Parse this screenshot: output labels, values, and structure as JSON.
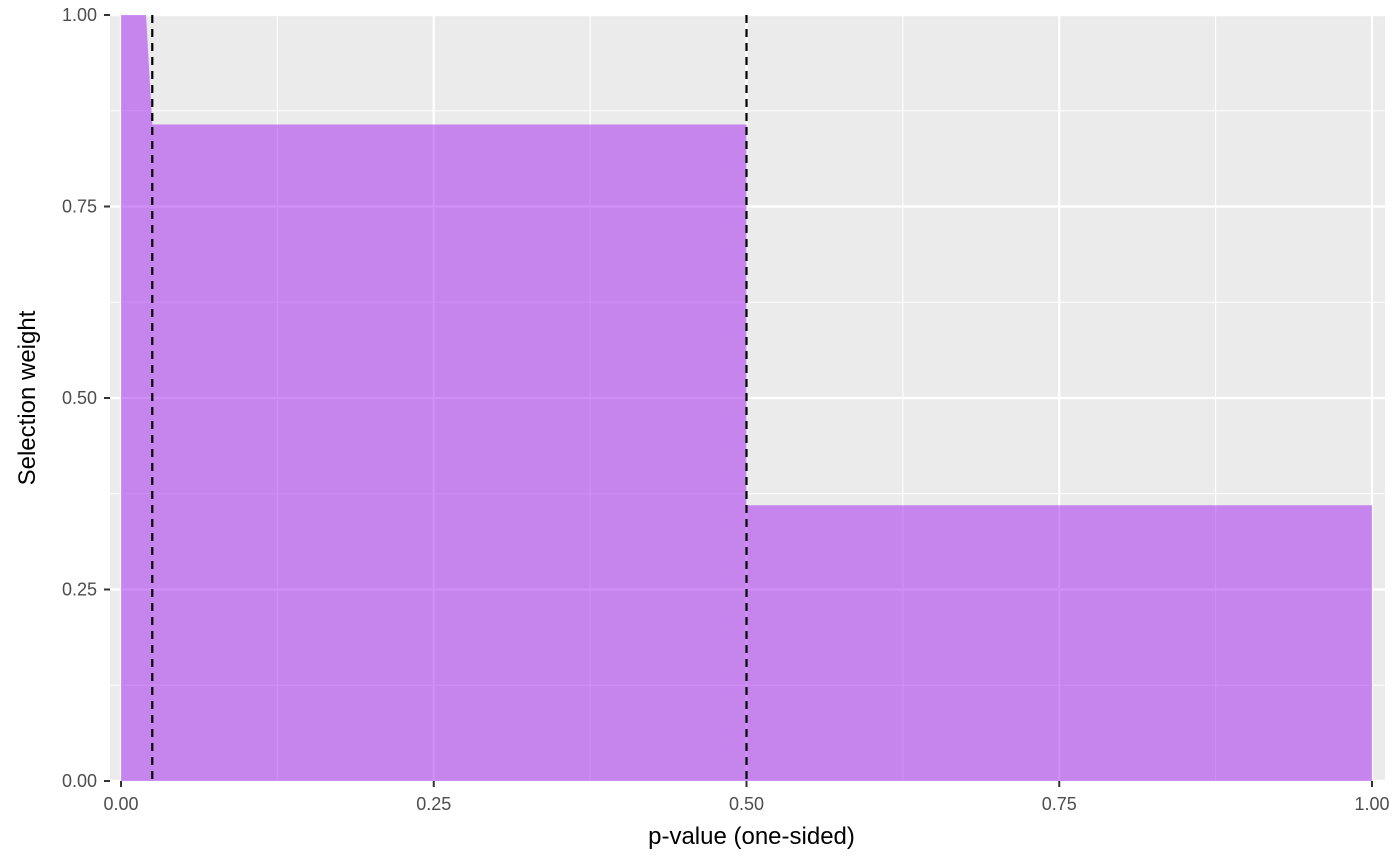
{
  "chart_data": {
    "type": "area",
    "title": "",
    "xlabel": "p-value (one-sided)",
    "ylabel": "Selection weight",
    "xlim": [
      0,
      1
    ],
    "ylim": [
      0,
      1
    ],
    "x_ticks": [
      0,
      0.25,
      0.5,
      0.75,
      1
    ],
    "x_tick_labels": [
      "0.00",
      "0.25",
      "0.50",
      "0.75",
      "1.00"
    ],
    "y_ticks": [
      0,
      0.25,
      0.5,
      0.75,
      1
    ],
    "y_tick_labels": [
      "0.00",
      "0.25",
      "0.50",
      "0.75",
      "1.00"
    ],
    "series": [
      {
        "x": [
          0,
          0.02,
          0.025,
          0.025,
          0.5,
          0.5,
          1
        ],
        "y": [
          1,
          1,
          0.857,
          0.857,
          0.857,
          0.36,
          0.36
        ]
      }
    ],
    "vlines": [
      0.025,
      0.5
    ],
    "grid": true,
    "colors": {
      "fill": "#A020F0",
      "fill_opacity": 0.5,
      "panel": "#EBEBEB",
      "grid": "#FFFFFF",
      "vline": "#000000"
    }
  }
}
